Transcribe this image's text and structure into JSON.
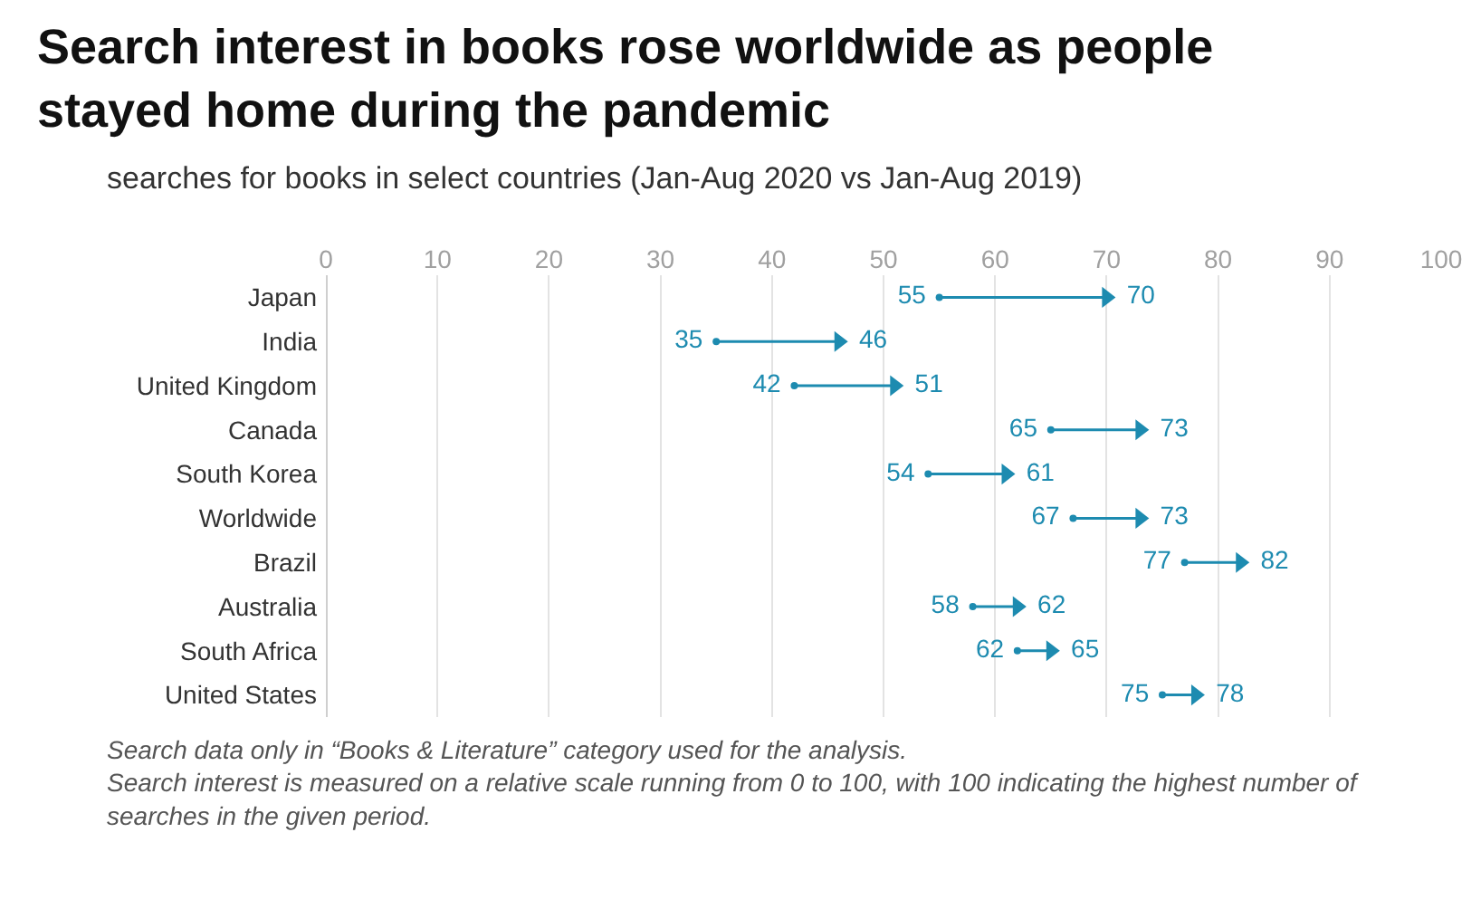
{
  "chart_data": {
    "type": "scatter",
    "orientation": "horizontal",
    "title": "Search interest in books rose worldwide as people stayed home during the pandemic",
    "subtitle": "searches for books in select countries (Jan-Aug 2020 vs Jan-Aug 2019)",
    "categories": [
      "Japan",
      "India",
      "United Kingdom",
      "Canada",
      "South Korea",
      "Worldwide",
      "Brazil",
      "Australia",
      "South Africa",
      "United States"
    ],
    "series": [
      {
        "color": "#1d8bb0",
        "values": [
          55,
          35,
          42,
          65,
          54,
          67,
          77,
          58,
          62,
          75
        ]
      },
      {
        "color": "#1d8bb0",
        "values": [
          70,
          46,
          51,
          73,
          61,
          73,
          82,
          62,
          65,
          78
        ]
      }
    ],
    "xlim": [
      0,
      100
    ],
    "xticks": [
      0,
      10,
      20,
      30,
      40,
      50,
      60,
      70,
      80,
      90,
      100
    ],
    "grid": "x",
    "data_labels": true,
    "annotations": [
      "Search data only in “Books & Literature” category used for the analysis. Search interest is measured on a relative scale running from 0 to 100, with 100 indicating the highest number of searches in the given period."
    ]
  }
}
